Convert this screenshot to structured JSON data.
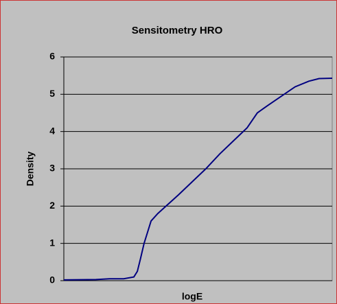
{
  "chart_data": {
    "type": "line",
    "title": "Sensitometry HRO",
    "x_label": "logE",
    "y_label": "Density",
    "x": [
      0,
      12,
      17,
      22.3,
      26.1,
      27.4,
      28.6,
      29.9,
      31.2,
      32.5,
      35,
      37.6,
      42.7,
      47.8,
      52.9,
      58.1,
      63.2,
      68.3,
      72.1,
      76,
      81.1,
      86.2,
      91.3,
      95.1,
      100
    ],
    "series": [
      {
        "name": "Density",
        "color": "#000080",
        "values": [
          0.02,
          0.03,
          0.05,
          0.05,
          0.1,
          0.25,
          0.6,
          1.0,
          1.3,
          1.6,
          1.8,
          1.97,
          2.3,
          2.65,
          3.0,
          3.4,
          3.75,
          4.1,
          4.5,
          4.7,
          4.95,
          5.2,
          5.35,
          5.42,
          5.43
        ]
      }
    ],
    "xlim": [
      0,
      100
    ],
    "ylim": [
      0,
      6
    ],
    "yticks": [
      0,
      1,
      2,
      3,
      4,
      5,
      6
    ],
    "grid": true
  }
}
